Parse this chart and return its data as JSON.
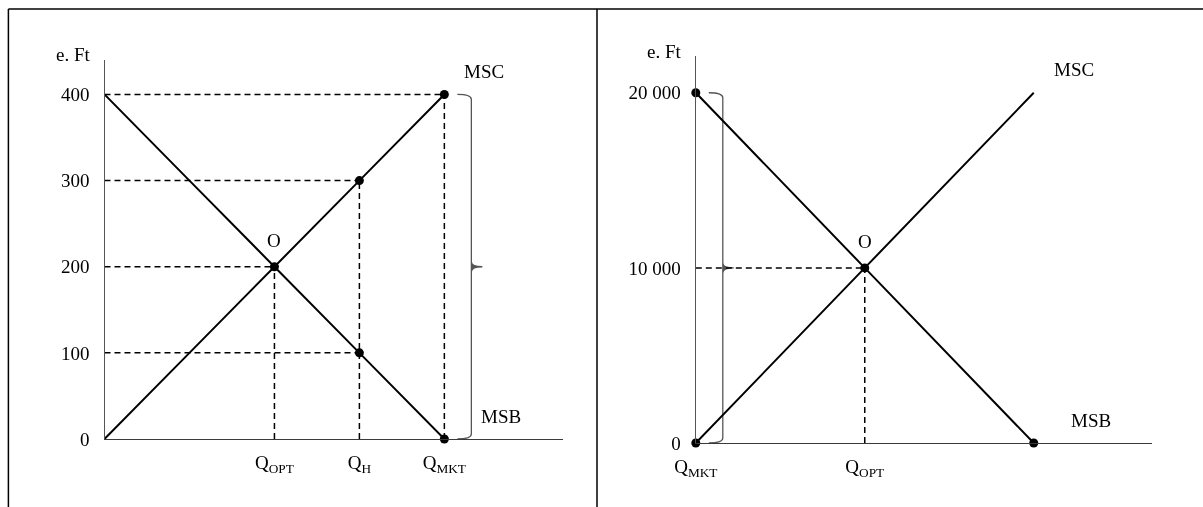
{
  "chart_data": [
    {
      "type": "line",
      "ylabel": "e. Ft",
      "ylim": [
        0,
        440
      ],
      "categories": [
        null,
        null,
        "Q$_{OPT}$",
        "Q$_{H}$",
        "Q$_{MKT}$"
      ],
      "yticks": [
        0,
        100,
        200,
        300,
        400
      ],
      "series": [
        {
          "name": "MSC",
          "color": "#000000",
          "values": [
            0,
            100,
            200,
            300,
            400
          ]
        },
        {
          "name": "MSB",
          "color": "#000000",
          "values": [
            400,
            300,
            200,
            100,
            0
          ]
        },
        {
          "type": "scatter",
          "marker": "circle",
          "color": "#000000",
          "values": [
            null,
            null,
            200,
            300,
            400
          ]
        },
        {
          "type": "scatter",
          "marker": "circle",
          "color": "#000000",
          "values": [
            null,
            null,
            null,
            100,
            0
          ]
        },
        {
          "line_style": "dashed",
          "color": "#000000",
          "values": [
            400,
            400,
            400,
            400,
            400
          ]
        },
        {
          "line_style": "dashed",
          "color": "#000000",
          "values": [
            300,
            300,
            300,
            300,
            null
          ]
        },
        {
          "line_style": "dashed",
          "color": "#000000",
          "values": [
            200,
            200,
            200,
            null,
            null
          ]
        },
        {
          "line_style": "dashed",
          "color": "#000000",
          "values": [
            100,
            100,
            100,
            100,
            null
          ]
        },
        {
          "line_style": "dashed",
          "color": "#000000",
          "x": [
            "Q$_{OPT}$",
            "Q$_{OPT}$"
          ],
          "values": [
            0,
            200
          ]
        },
        {
          "line_style": "dashed",
          "color": "#000000",
          "x": [
            "Q$_{H}$",
            "Q$_{H}$"
          ],
          "values": [
            0,
            300
          ]
        },
        {
          "line_style": "dashed",
          "color": "#000000",
          "x": [
            "Q$_{MKT}$",
            "Q$_{MKT}$"
          ],
          "values": [
            0,
            400
          ]
        }
      ],
      "annotations": [
        {
          "text": "O",
          "x": "Q$_{OPT}$",
          "y": 200
        }
      ]
    },
    {
      "type": "line",
      "ylabel": "e. Ft",
      "ylim": [
        0,
        22100
      ],
      "categories": [
        "Q$_{MKT}$",
        "Q$_{OPT}$",
        null
      ],
      "yticks": [
        0,
        {
          "value": 10000,
          "label": "10 000"
        },
        {
          "value": 20000,
          "label": "20 000"
        }
      ],
      "series": [
        {
          "name": "MSC",
          "color": "#000000",
          "values": [
            0,
            10000,
            20000
          ]
        },
        {
          "name": "MSB",
          "color": "#000000",
          "values": [
            20000,
            10000,
            0
          ]
        },
        {
          "type": "scatter",
          "marker": "circle",
          "color": "#000000",
          "values": [
            0,
            10000,
            null
          ]
        },
        {
          "type": "scatter",
          "marker": "circle",
          "color": "#000000",
          "values": [
            20000,
            null,
            0
          ]
        },
        {
          "line_style": "dashed",
          "color": "#000000",
          "values": [
            10000,
            10000,
            null
          ]
        },
        {
          "line_style": "dashed",
          "color": "#000000",
          "x": [
            "Q$_{OPT}$",
            "Q$_{OPT}$"
          ],
          "values": [
            0,
            10000
          ]
        }
      ],
      "annotations": [
        {
          "text": "O",
          "x": "Q$_{OPT}$",
          "y": 10000
        }
      ]
    }
  ]
}
